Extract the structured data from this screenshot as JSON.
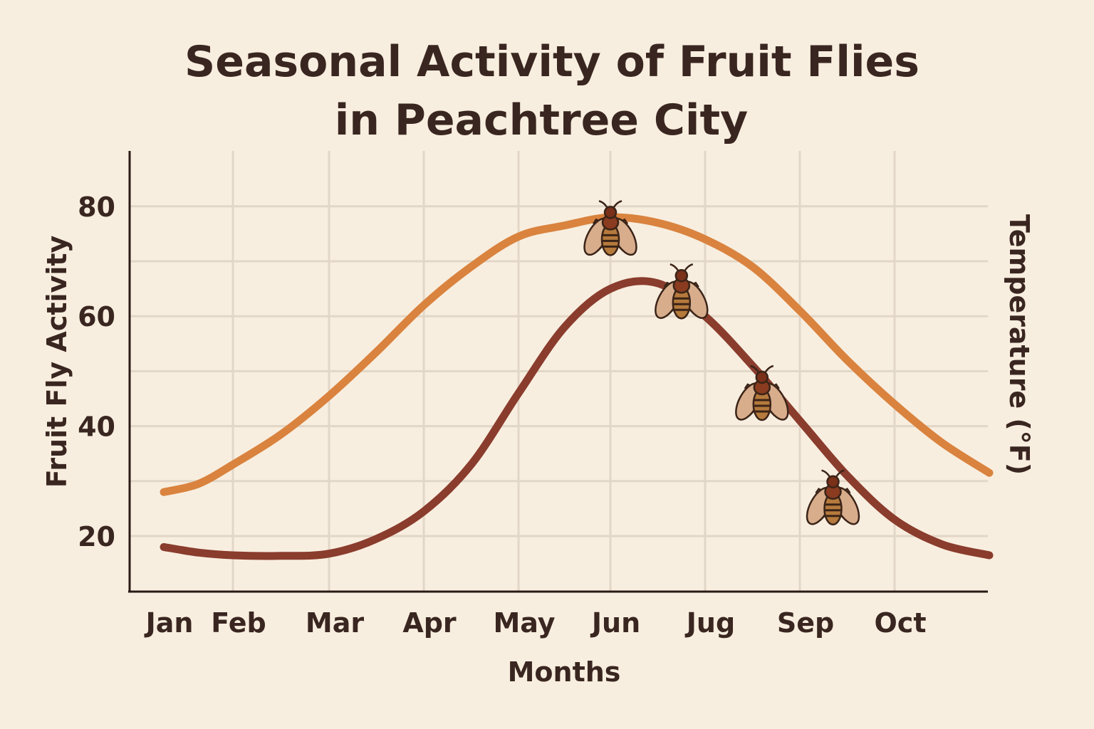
{
  "chart_data": {
    "type": "line",
    "title": [
      "Seasonal Activity of Fruit Flies",
      "in Peachtree City"
    ],
    "xlabel": "Months",
    "ylabel": "Fruit Fly Activity",
    "ylabel_right": "Temperature (°F)",
    "categories": [
      "Jan",
      "Feb",
      "Mar",
      "Apr",
      "May",
      "Jun",
      "Jug",
      "Sep",
      "Oct"
    ],
    "yticks": [
      20,
      40,
      60,
      80
    ],
    "ylim": [
      9,
      89
    ],
    "grid": true,
    "series": [
      {
        "color": "#d9833f",
        "x": [
          0,
          0.5,
          1,
          1.5,
          2,
          2.5,
          3,
          3.5,
          4,
          4.5,
          5,
          5.5,
          6,
          6.5,
          7,
          7.5,
          8,
          8.5,
          9
        ],
        "values": [
          28,
          29.5,
          33,
          38.5,
          45.5,
          53.5,
          62,
          69,
          74.5,
          76.5,
          78,
          77,
          74,
          69,
          61,
          52,
          44,
          37,
          31.5
        ]
      },
      {
        "color": "#8a3c2d",
        "x": [
          0,
          0.5,
          1,
          1.5,
          2,
          2.5,
          3,
          3.5,
          4,
          4.5,
          5,
          5.5,
          6,
          6.5,
          7,
          7.5,
          8,
          8.5,
          9
        ],
        "values": [
          18,
          17,
          16.5,
          16.4,
          16.8,
          19.5,
          24.5,
          33,
          46,
          58,
          65,
          66,
          60,
          51,
          41,
          31,
          23,
          18.5,
          16.5
        ]
      }
    ],
    "markers": [
      {
        "icon": "fly-icon",
        "x": 5,
        "y": 75
      },
      {
        "icon": "fly-icon",
        "x": 5.75,
        "y": 63.5
      },
      {
        "icon": "fly-icon",
        "x": 6.6,
        "y": 45
      },
      {
        "icon": "fly-icon",
        "x": 7.35,
        "y": 26
      }
    ]
  }
}
